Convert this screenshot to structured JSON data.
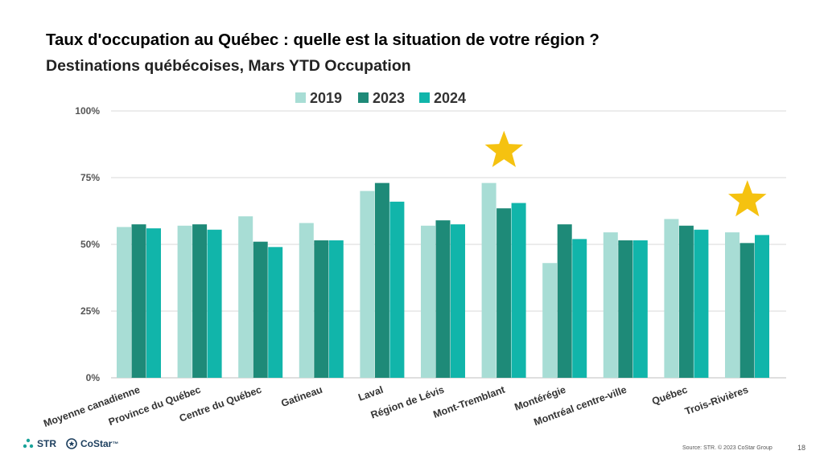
{
  "title": "Taux d'occupation au Québec : quelle est la situation de votre région ?",
  "subtitle": "Destinations québécoises, Mars YTD Occupation",
  "chart_data": {
    "type": "bar",
    "categories": [
      "Moyenne canadienne",
      "Province du Québec",
      "Centre du Québec",
      "Gatineau",
      "Laval",
      "Région de Lévis",
      "Mont-Tremblant",
      "Montérégie",
      "Montréal centre-ville",
      "Québec",
      "Trois-Rivières"
    ],
    "series": [
      {
        "name": "2019",
        "color": "#a8ddd5",
        "values": [
          56.5,
          57,
          60.5,
          58,
          70,
          57,
          73,
          43,
          54.5,
          59.5,
          54.5
        ]
      },
      {
        "name": "2023",
        "color": "#1e8a78",
        "values": [
          57.5,
          57.5,
          51,
          51.5,
          73,
          59,
          63.5,
          57.5,
          51.5,
          57,
          50.5
        ]
      },
      {
        "name": "2024",
        "color": "#11b5aa",
        "values": [
          56,
          55.5,
          49,
          51.5,
          66,
          57.5,
          65.5,
          52,
          51.5,
          55.5,
          53.5
        ]
      }
    ],
    "ylim": [
      0,
      100
    ],
    "yticks": [
      0,
      25,
      50,
      75,
      100
    ],
    "ytick_labels": [
      "0%",
      "25%",
      "50%",
      "75%",
      "100%"
    ],
    "grid": true,
    "legend_position": "top-center",
    "annotations": [
      {
        "type": "star",
        "category": "Mont-Tremblant",
        "color": "#f5c210"
      },
      {
        "type": "star",
        "category": "Trois-Rivières",
        "color": "#f5c210"
      }
    ]
  },
  "footer": {
    "logo_str": "STR",
    "logo_costar": "CoStar",
    "trademark": "™",
    "source": "Source: STR. © 2023 CoStar Group",
    "page_number": "18"
  }
}
